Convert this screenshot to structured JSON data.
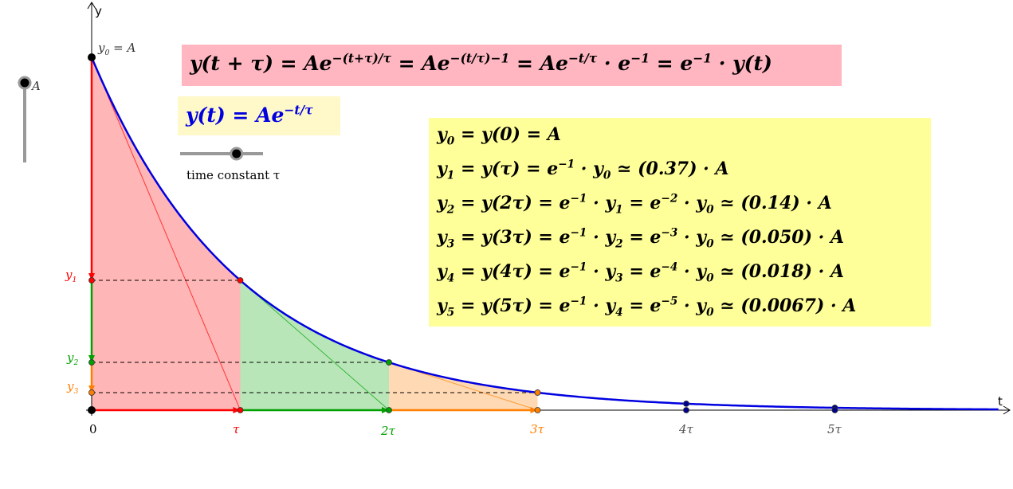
{
  "axes": {
    "x_name": "t",
    "y_name": "y",
    "x_ticks": [
      "0",
      "τ",
      "2τ",
      "3τ",
      "4τ",
      "5τ"
    ],
    "y_ticks": [
      "y",
      "1",
      "y",
      "2",
      "y",
      "3"
    ]
  },
  "labels": {
    "y0_label": "y",
    "y0_sub": "0",
    "y0_rhs": " = A",
    "a_slider_label": "A",
    "tau_slider_label": "time constant τ"
  },
  "equations": {
    "shift": "y(t + τ) = Ae<sup>−(t+τ)/τ</sup> = Ae<sup>−(t/τ)−1</sup> = Ae<sup>−t/τ</sup> · e<sup>−1</sup> = e<sup>−1</sup> · y(t)",
    "definition": "y(t) = Ae<sup>−t/τ</sup>",
    "values": [
      "y<sub>0</sub> = y(0) = A",
      "y<sub>1</sub> = y(τ) = e<sup>−1</sup> · y<sub>0</sub> ≃ (0.37) · A",
      "y<sub>2</sub> = y(2τ) = e<sup>−1</sup> · y<sub>1</sub> = e<sup>−2</sup> · y<sub>0</sub> ≃ (0.14) · A",
      "y<sub>3</sub> = y(3τ) = e<sup>−1</sup> · y<sub>2</sub> = e<sup>−3</sup> · y<sub>0</sub> ≃ (0.050) · A",
      "y<sub>4</sub> = y(4τ) = e<sup>−1</sup> · y<sub>3</sub> = e<sup>−4</sup> · y<sub>0</sub> ≃ (0.018) · A",
      "y<sub>5</sub> = y(5τ) = e<sup>−1</sup> · y<sub>4</sub> = e<sup>−5</sup> · y<sub>0</sub> ≃ (0.0067) · A"
    ]
  },
  "colors": {
    "curve": "#0000e0",
    "red": "#ff0000",
    "green": "#00a000",
    "orange": "#ff8000",
    "pink_fill": "#ffb6b6",
    "green_fill": "#b8e6b8",
    "orange_fill": "#ffd9b3",
    "gray": "#555555"
  },
  "model": {
    "amplitude": 1,
    "time_constant": 1,
    "t_max": 6.1,
    "tau_slider_fraction": 0.68
  }
}
